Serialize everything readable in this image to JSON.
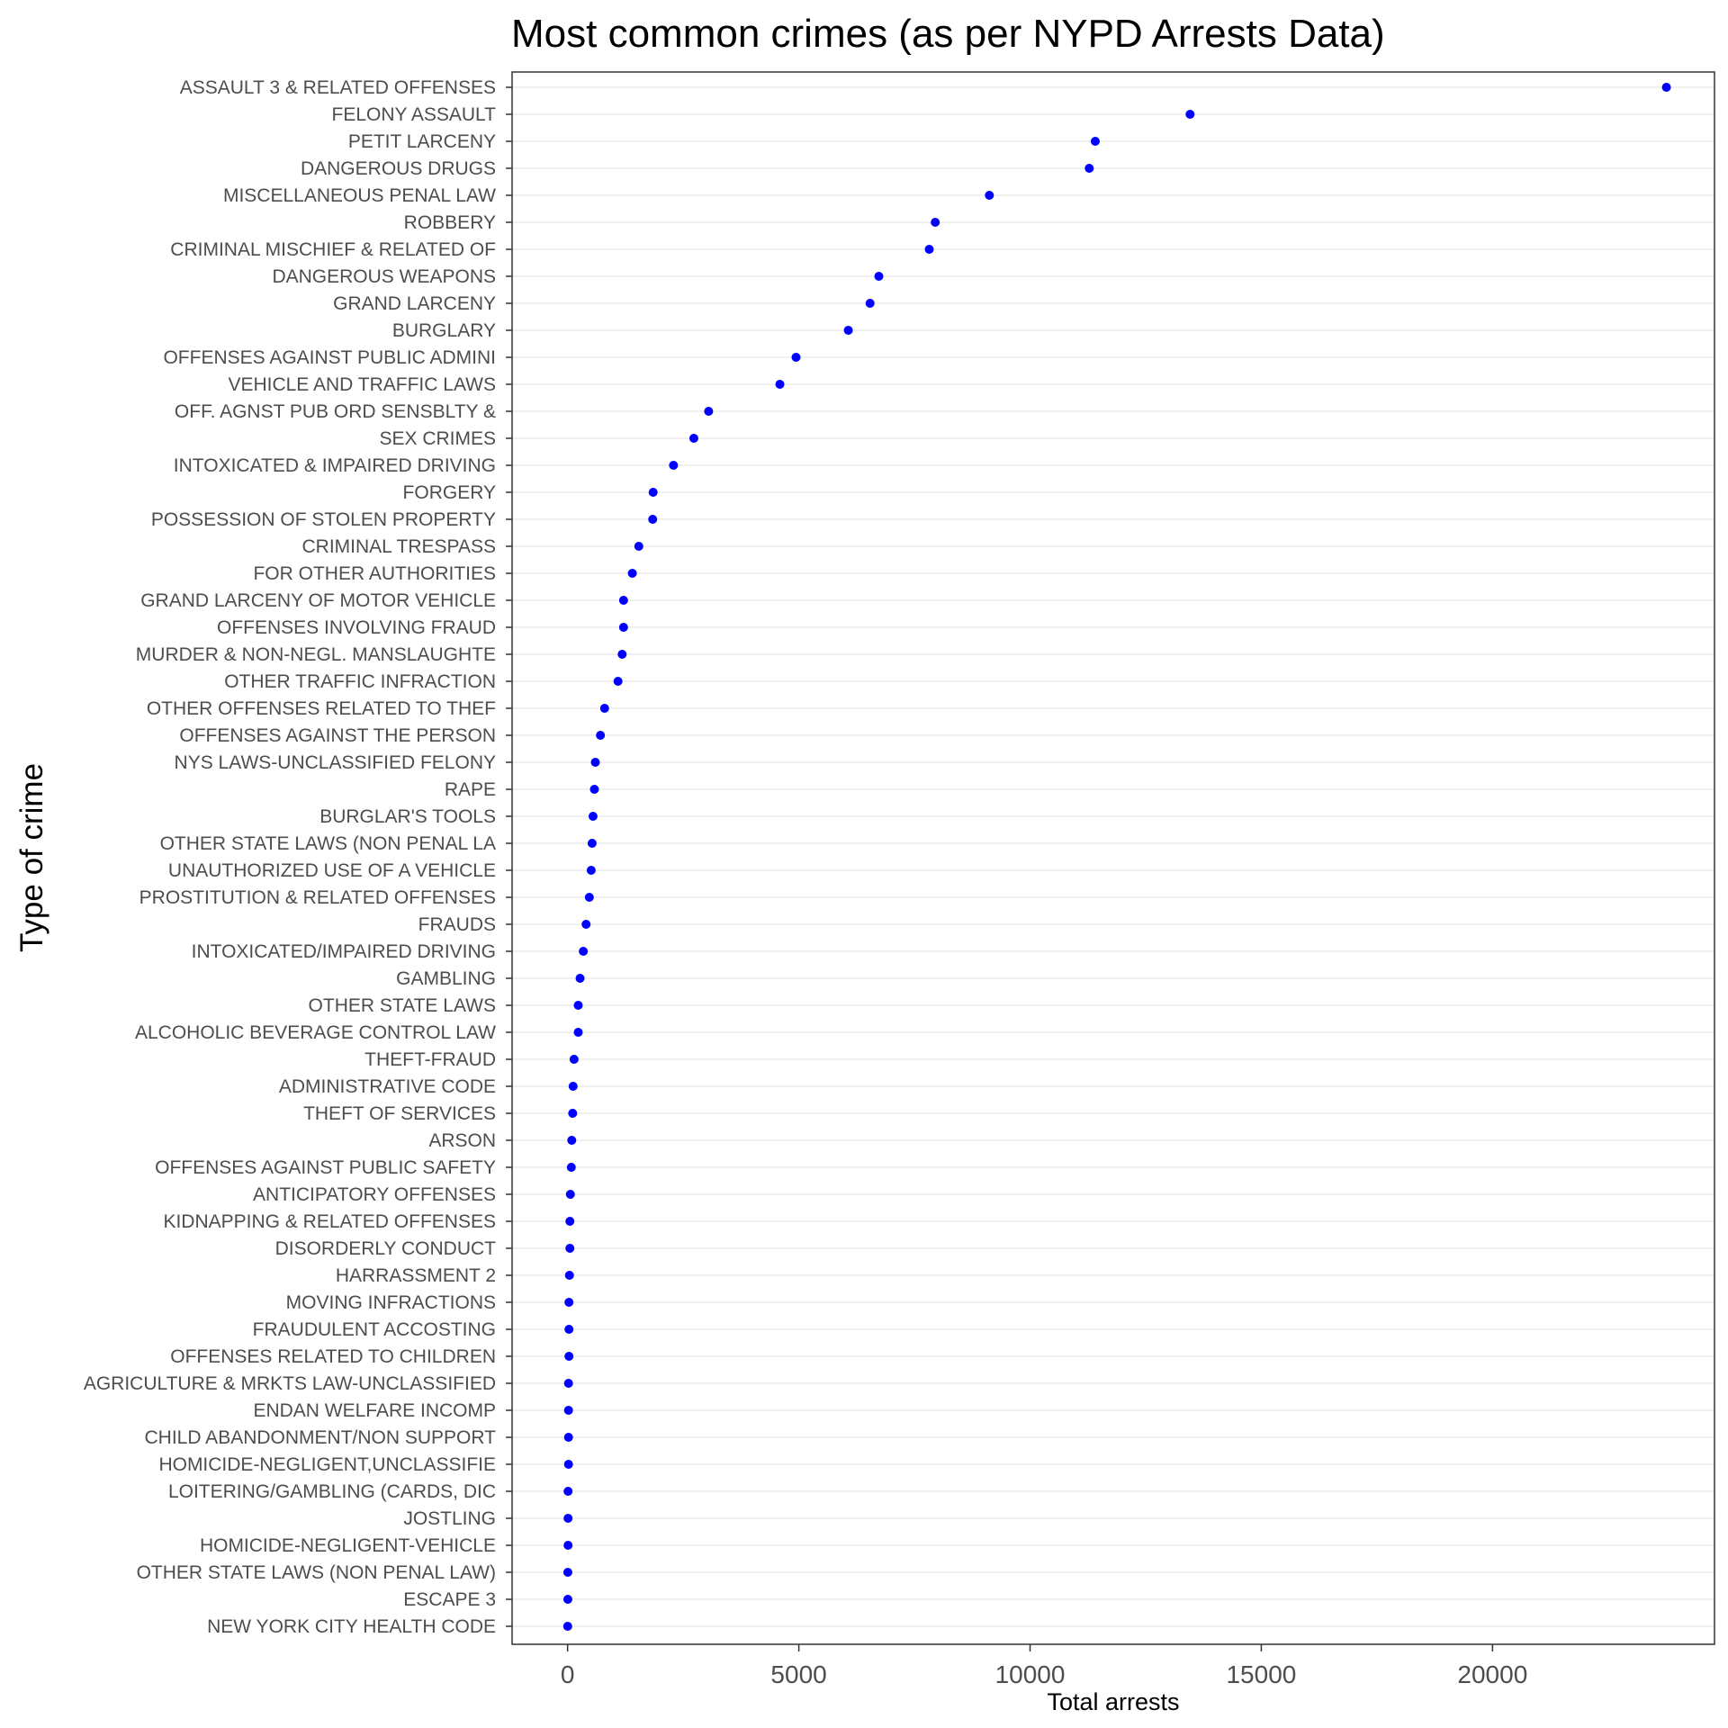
{
  "chart_data": {
    "type": "scatter",
    "title": "Most common crimes (as per NYPD Arrests Data)",
    "xlabel": "Total arrests",
    "ylabel": "Type of crime",
    "xlim": [
      -1200,
      24800
    ],
    "xticks": [
      0,
      5000,
      10000,
      15000,
      20000
    ],
    "xtick_labels": [
      "0",
      "5000",
      "10000",
      "15000",
      "20000"
    ],
    "grid": "horizontal major lines",
    "legend": "none",
    "point_color": "#0000ff",
    "categories": [
      "ASSAULT 3 & RELATED OFFENSES",
      "FELONY ASSAULT",
      "PETIT LARCENY",
      "DANGEROUS DRUGS",
      "MISCELLANEOUS PENAL LAW",
      "ROBBERY",
      "CRIMINAL MISCHIEF & RELATED OF",
      "DANGEROUS WEAPONS",
      "GRAND LARCENY",
      "BURGLARY",
      "OFFENSES AGAINST PUBLIC ADMINI",
      "VEHICLE AND TRAFFIC LAWS",
      "OFF. AGNST PUB ORD SENSBLTY &",
      "SEX CRIMES",
      "INTOXICATED & IMPAIRED DRIVING",
      "FORGERY",
      "POSSESSION OF STOLEN PROPERTY",
      "CRIMINAL TRESPASS",
      "FOR OTHER AUTHORITIES",
      "GRAND LARCENY OF MOTOR VEHICLE",
      "OFFENSES INVOLVING FRAUD",
      "MURDER & NON-NEGL. MANSLAUGHTE",
      "OTHER TRAFFIC INFRACTION",
      "OTHER OFFENSES RELATED TO THEF",
      "OFFENSES AGAINST THE PERSON",
      "NYS LAWS-UNCLASSIFIED FELONY",
      "RAPE",
      "BURGLAR'S TOOLS",
      "OTHER STATE LAWS (NON PENAL LA",
      "UNAUTHORIZED USE OF A VEHICLE",
      "PROSTITUTION & RELATED OFFENSES",
      "FRAUDS",
      "INTOXICATED/IMPAIRED DRIVING",
      "GAMBLING",
      "OTHER STATE LAWS",
      "ALCOHOLIC BEVERAGE CONTROL LAW",
      "THEFT-FRAUD",
      "ADMINISTRATIVE CODE",
      "THEFT OF SERVICES",
      "ARSON",
      "OFFENSES AGAINST PUBLIC SAFETY",
      "ANTICIPATORY OFFENSES",
      "KIDNAPPING & RELATED OFFENSES",
      "DISORDERLY CONDUCT",
      "HARRASSMENT 2",
      "MOVING INFRACTIONS",
      "FRAUDULENT ACCOSTING",
      "OFFENSES RELATED TO CHILDREN",
      "AGRICULTURE & MRKTS LAW-UNCLASSIFIED",
      "ENDAN WELFARE INCOMP",
      "CHILD ABANDONMENT/NON SUPPORT",
      "HOMICIDE-NEGLIGENT,UNCLASSIFIE",
      "LOITERING/GAMBLING (CARDS, DIC",
      "JOSTLING",
      "HOMICIDE-NEGLIGENT-VEHICLE",
      "OTHER STATE LAWS (NON PENAL LAW)",
      "ESCAPE 3",
      "NEW YORK CITY HEALTH CODE"
    ],
    "values": [
      23760,
      13460,
      11410,
      11280,
      9120,
      7950,
      7820,
      6730,
      6540,
      6070,
      4940,
      4590,
      3050,
      2730,
      2290,
      1850,
      1840,
      1540,
      1400,
      1210,
      1210,
      1180,
      1090,
      800,
      710,
      600,
      580,
      550,
      530,
      510,
      470,
      400,
      340,
      270,
      230,
      230,
      140,
      120,
      110,
      90,
      80,
      60,
      50,
      50,
      40,
      30,
      30,
      30,
      20,
      20,
      20,
      20,
      10,
      10,
      10,
      5,
      5,
      2
    ]
  }
}
